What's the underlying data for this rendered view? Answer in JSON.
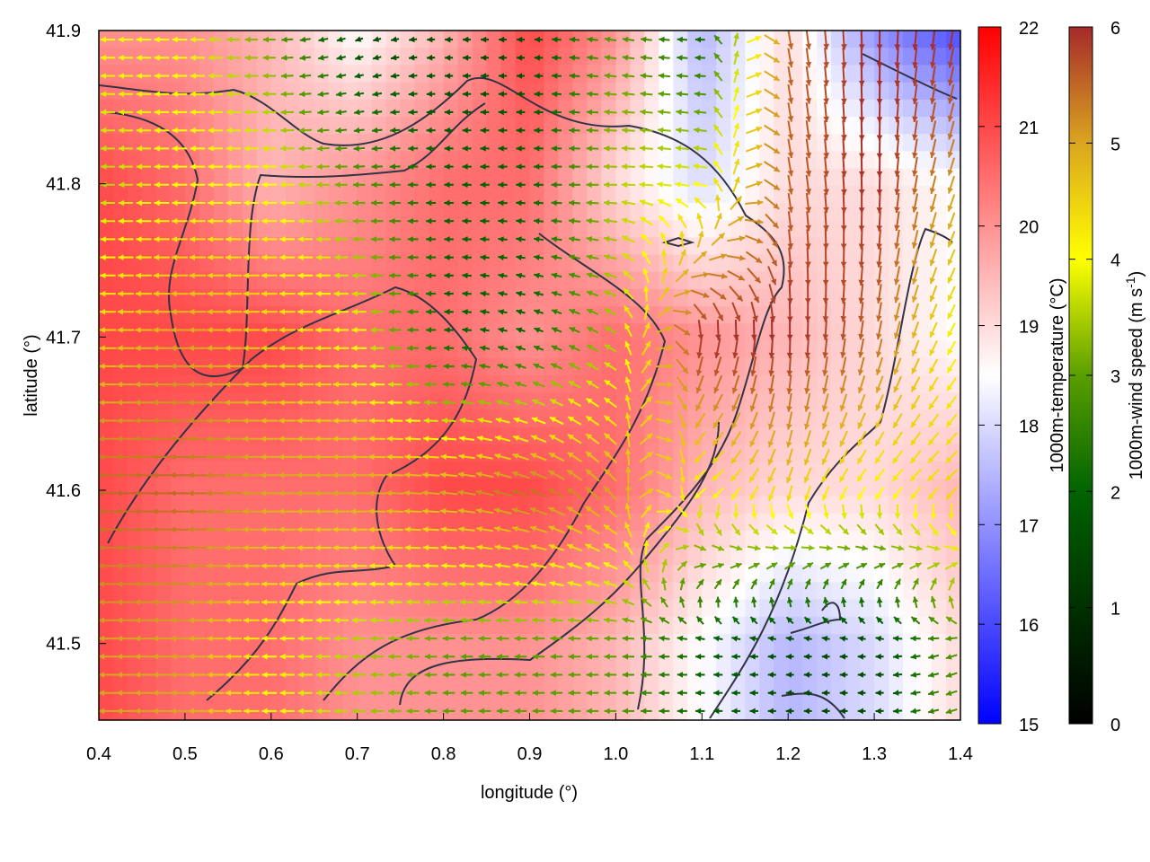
{
  "chart_data": {
    "type": "heatmap",
    "xlabel": "longitude (°)",
    "ylabel": "latitude (°)",
    "xlim": [
      0.4,
      1.4
    ],
    "ylim": [
      41.45,
      41.9
    ],
    "xticks": [
      "0.4",
      "0.5",
      "0.6",
      "0.7",
      "0.8",
      "0.9",
      "1.0",
      "1.1",
      "1.2",
      "1.3",
      "1.4"
    ],
    "yticks": [
      "41.5",
      "41.6",
      "41.7",
      "41.8",
      "41.9"
    ],
    "grid": false,
    "grid_lon": [
      0.4,
      0.5,
      0.6,
      0.7,
      0.8,
      0.9,
      1.0,
      1.1,
      1.2,
      1.3,
      1.4
    ],
    "grid_lat": [
      41.9,
      41.8,
      41.7,
      41.6,
      41.5
    ],
    "temperature": {
      "label": "1000m-temperature (°C)",
      "range": [
        15,
        22
      ],
      "ticks": [
        "15",
        "16",
        "17",
        "18",
        "19",
        "20",
        "21",
        "22"
      ],
      "colors": {
        "low": "#0000ff",
        "mid": "#ffffff",
        "high": "#ff0000"
      },
      "values": [
        [
          20,
          20,
          19.5,
          18.5,
          19.5,
          21,
          20,
          17.5,
          19,
          17,
          16
        ],
        [
          21,
          20.5,
          19.5,
          20,
          20.5,
          20.5,
          19,
          18,
          19,
          19,
          18.5
        ],
        [
          21,
          21,
          21,
          20.5,
          20.5,
          20,
          20.5,
          20,
          19.5,
          19,
          18.5
        ],
        [
          21,
          20.5,
          20.5,
          20.5,
          21,
          21,
          20.5,
          19.5,
          19,
          19,
          19.5
        ],
        [
          21,
          20.5,
          20.5,
          20,
          20,
          20,
          19.5,
          18.5,
          17.5,
          18,
          19
        ]
      ]
    },
    "wind": {
      "label": "1000m-wind speed (m s",
      "label_sup": "-1",
      "label_end": ")",
      "range": [
        0,
        6
      ],
      "ticks": [
        "0",
        "1",
        "2",
        "3",
        "4",
        "5",
        "6"
      ],
      "colors": [
        "#000000",
        "#003000",
        "#006400",
        "#5a9e00",
        "#ffff00",
        "#daa520",
        "#a52a2a"
      ],
      "speed": [
        [
          4,
          4,
          3,
          1.5,
          1.5,
          1.5,
          3,
          2,
          5.5,
          6,
          6
        ],
        [
          3.5,
          4,
          4,
          3,
          2,
          2,
          3.5,
          4,
          5.5,
          6,
          5
        ],
        [
          4.5,
          5,
          4.5,
          4,
          2,
          2,
          3.5,
          6,
          6,
          5.5,
          4
        ],
        [
          5.5,
          5.5,
          5,
          5,
          5,
          5.5,
          5,
          4,
          4.5,
          4,
          4.5
        ],
        [
          5,
          5,
          4,
          3.5,
          3,
          3,
          3,
          2,
          1.5,
          1.5,
          3
        ]
      ],
      "direction_deg": [
        [
          180,
          180,
          180,
          200,
          180,
          180,
          170,
          180,
          -80,
          -90,
          -100
        ],
        [
          180,
          180,
          180,
          180,
          180,
          180,
          180,
          170,
          -80,
          -90,
          -110
        ],
        [
          180,
          180,
          180,
          180,
          180,
          160,
          150,
          -100,
          -90,
          -100,
          -120
        ],
        [
          180,
          180,
          180,
          180,
          175,
          160,
          130,
          -150,
          -110,
          -130,
          -140
        ],
        [
          180,
          180,
          180,
          180,
          180,
          180,
          180,
          180,
          180,
          180,
          200
        ]
      ]
    }
  }
}
